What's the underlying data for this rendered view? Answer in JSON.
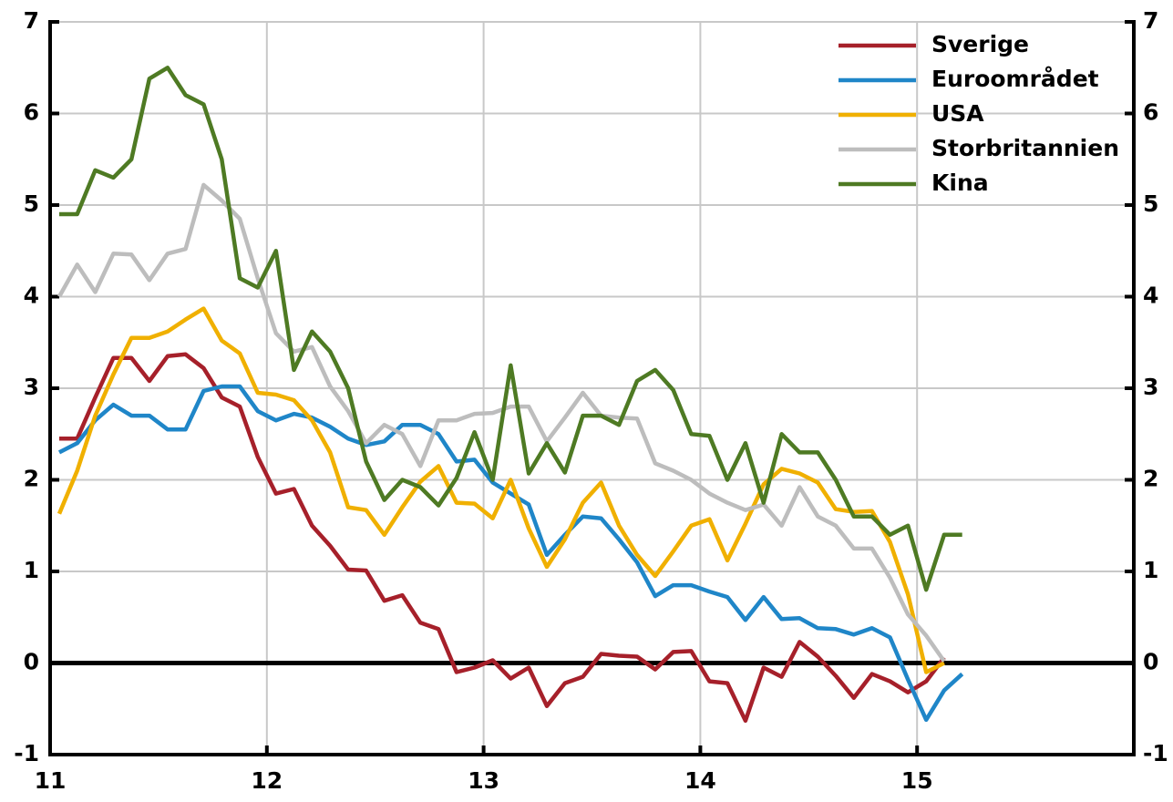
{
  "chart_data": {
    "type": "line",
    "x": [
      11.042,
      11.125,
      11.208,
      11.292,
      11.375,
      11.458,
      11.542,
      11.625,
      11.708,
      11.792,
      11.875,
      11.958,
      12.042,
      12.125,
      12.208,
      12.292,
      12.375,
      12.458,
      12.542,
      12.625,
      12.708,
      12.792,
      12.875,
      12.958,
      13.042,
      13.125,
      13.208,
      13.292,
      13.375,
      13.458,
      13.542,
      13.625,
      13.708,
      13.792,
      13.875,
      13.958,
      14.042,
      14.125,
      14.208,
      14.292,
      14.375,
      14.458,
      14.542,
      14.625,
      14.708,
      14.792,
      14.875,
      14.958,
      15.042,
      15.125,
      15.208
    ],
    "series": [
      {
        "name": "Sverige",
        "color": "#a6202a",
        "values": [
          2.45,
          2.45,
          2.9,
          3.33,
          3.33,
          3.08,
          3.35,
          3.37,
          3.22,
          2.9,
          2.8,
          2.25,
          1.85,
          1.9,
          1.5,
          1.28,
          1.02,
          1.01,
          0.68,
          0.74,
          0.44,
          0.37,
          -0.1,
          -0.05,
          0.03,
          -0.17,
          -0.05,
          -0.47,
          -0.22,
          -0.15,
          0.1,
          0.08,
          0.07,
          -0.07,
          0.12,
          0.13,
          -0.2,
          -0.22,
          -0.63,
          -0.05,
          -0.15,
          0.23,
          0.07,
          -0.14,
          -0.38,
          -0.12,
          -0.2,
          -0.32,
          -0.2,
          0.06,
          null
        ]
      },
      {
        "name": "Euroområdet",
        "color": "#1f86c8",
        "values": [
          2.3,
          2.4,
          2.65,
          2.82,
          2.7,
          2.7,
          2.55,
          2.55,
          2.97,
          3.02,
          3.02,
          2.75,
          2.65,
          2.72,
          2.68,
          2.58,
          2.45,
          2.38,
          2.42,
          2.6,
          2.6,
          2.5,
          2.2,
          2.22,
          1.97,
          1.85,
          1.73,
          1.18,
          1.4,
          1.6,
          1.58,
          1.35,
          1.1,
          0.73,
          0.85,
          0.85,
          0.78,
          0.72,
          0.47,
          0.72,
          0.48,
          0.49,
          0.38,
          0.37,
          0.31,
          0.38,
          0.28,
          -0.18,
          -0.62,
          -0.3,
          -0.12
        ]
      },
      {
        "name": "USA",
        "color": "#f0b000",
        "values": [
          1.63,
          2.1,
          2.7,
          3.15,
          3.55,
          3.55,
          3.62,
          3.75,
          3.87,
          3.52,
          3.38,
          2.95,
          2.93,
          2.87,
          2.65,
          2.3,
          1.7,
          1.67,
          1.4,
          1.7,
          1.98,
          2.15,
          1.75,
          1.74,
          1.58,
          2.0,
          1.47,
          1.05,
          1.35,
          1.75,
          1.97,
          1.5,
          1.18,
          0.95,
          1.22,
          1.5,
          1.57,
          1.12,
          1.52,
          1.95,
          2.12,
          2.07,
          1.97,
          1.68,
          1.65,
          1.66,
          1.32,
          0.75,
          -0.1,
          0.0,
          null
        ]
      },
      {
        "name": "Storbritannien",
        "color": "#bdbdbd",
        "values": [
          4.0,
          4.35,
          4.05,
          4.47,
          4.46,
          4.18,
          4.47,
          4.52,
          5.22,
          5.05,
          4.85,
          4.2,
          3.6,
          3.4,
          3.45,
          3.02,
          2.75,
          2.4,
          2.6,
          2.5,
          2.15,
          2.65,
          2.65,
          2.72,
          2.73,
          2.8,
          2.8,
          2.42,
          2.68,
          2.95,
          2.7,
          2.68,
          2.67,
          2.18,
          2.1,
          2.0,
          1.85,
          1.75,
          1.67,
          1.73,
          1.5,
          1.92,
          1.6,
          1.5,
          1.25,
          1.25,
          0.93,
          0.53,
          0.3,
          0.02,
          null
        ]
      },
      {
        "name": "Kina",
        "color": "#4e7a23",
        "values": [
          4.9,
          4.9,
          5.38,
          5.3,
          5.5,
          6.38,
          6.5,
          6.2,
          6.1,
          5.5,
          4.2,
          4.1,
          4.5,
          3.2,
          3.62,
          3.4,
          3.0,
          2.2,
          1.78,
          2.0,
          1.92,
          1.72,
          2.02,
          2.52,
          2.0,
          3.25,
          2.07,
          2.4,
          2.08,
          2.7,
          2.7,
          2.6,
          3.08,
          3.2,
          2.98,
          2.5,
          2.48,
          2.0,
          2.4,
          1.75,
          2.5,
          2.3,
          2.3,
          2.0,
          1.6,
          1.6,
          1.4,
          1.5,
          0.8,
          1.4,
          1.4
        ]
      }
    ],
    "xlim": [
      11,
      16
    ],
    "xticks": [
      11,
      12,
      13,
      14,
      15
    ],
    "ylim": [
      -1,
      7
    ],
    "yticks": [
      -1,
      0,
      1,
      2,
      3,
      4,
      5,
      6,
      7
    ],
    "grid": true,
    "legend": "top-right"
  }
}
